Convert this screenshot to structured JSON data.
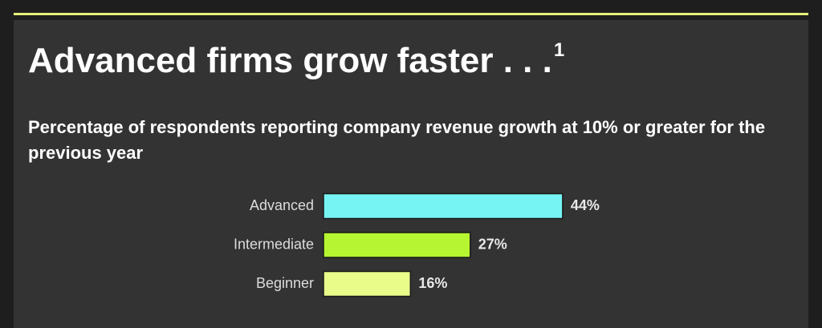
{
  "chart_data": {
    "type": "bar",
    "orientation": "horizontal",
    "title": "Advanced firms grow faster . . .",
    "title_footnote": "1",
    "subtitle": "Percentage of respondents reporting company revenue growth at 10% or greater for the previous year",
    "categories": [
      "Advanced",
      "Intermediate",
      "Beginner"
    ],
    "values": [
      44,
      27,
      16
    ],
    "value_labels": [
      "44%",
      "27%",
      "16%"
    ],
    "colors": [
      "#76f3f3",
      "#b6f531",
      "#e9fc8a"
    ]
  }
}
